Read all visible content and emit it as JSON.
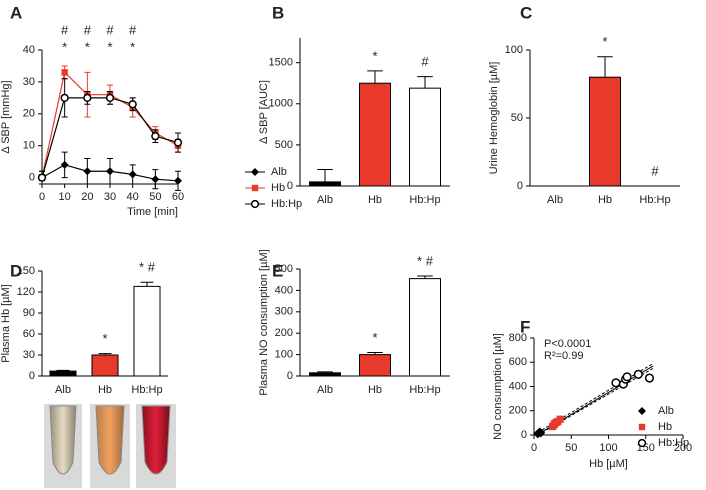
{
  "chart_data": [
    {
      "type": "line",
      "panel": "A",
      "ylabel": "Δ SBP [mmHg]",
      "xlabel": "Time [min]",
      "x": [
        0,
        10,
        20,
        30,
        40,
        50,
        60
      ],
      "xlim": [
        0,
        60
      ],
      "xticks": [
        0,
        10,
        20,
        30,
        40,
        50,
        60
      ],
      "ylim": [
        -2,
        40
      ],
      "yticks": [
        0,
        10,
        20,
        30,
        40
      ],
      "legend": "right",
      "series": [
        {
          "name": "Alb",
          "color": "#000000",
          "marker": "diamond",
          "values": [
            0,
            4,
            2,
            2,
            1,
            -0.5,
            -1
          ],
          "errors": [
            2,
            4,
            4,
            4,
            3,
            3,
            3
          ]
        },
        {
          "name": "Hb",
          "color": "#e8392b",
          "marker": "square",
          "values": [
            0,
            33,
            26,
            26,
            22,
            14,
            10
          ],
          "errors": [
            1,
            2,
            7,
            3,
            3,
            2,
            2
          ]
        },
        {
          "name": "Hb:Hp",
          "color": "#000000",
          "marker": "circle",
          "values": [
            0,
            25,
            25,
            25,
            23,
            13,
            11
          ],
          "errors": [
            2,
            6,
            2,
            2,
            2,
            2,
            3
          ]
        }
      ],
      "annotations_top": [
        null,
        "#",
        "#",
        "#",
        "#",
        null,
        null
      ],
      "annotations_bottom": [
        null,
        "*",
        "*",
        "*",
        "*",
        null,
        null
      ]
    },
    {
      "type": "bar",
      "panel": "B",
      "ylabel": "Δ SBP [AUC]",
      "categories": [
        "Alb",
        "Hb",
        "Hb:Hp"
      ],
      "values": [
        50,
        1250,
        1190
      ],
      "errors": [
        150,
        150,
        140
      ],
      "colors": [
        "#000000",
        "#e8392b",
        "#ffffff"
      ],
      "ylim": [
        0,
        1800
      ],
      "yticks": [
        0,
        500,
        1000,
        1500
      ],
      "annotations": [
        null,
        "*",
        "#"
      ]
    },
    {
      "type": "bar",
      "panel": "C",
      "ylabel": "Urine Hemoglobin [µM]",
      "categories": [
        "Alb",
        "Hb",
        "Hb:Hp"
      ],
      "values": [
        0,
        80,
        0
      ],
      "errors": [
        0,
        15,
        0
      ],
      "colors": [
        "#000000",
        "#e8392b",
        "#ffffff"
      ],
      "ylim": [
        0,
        100
      ],
      "yticks": [
        0,
        50,
        100
      ],
      "annotations": [
        null,
        "*",
        "#"
      ]
    },
    {
      "type": "bar",
      "panel": "D",
      "ylabel": "Plasma Hb [µM]",
      "categories": [
        "Alb",
        "Hb",
        "Hb:Hp"
      ],
      "values": [
        7,
        30,
        128
      ],
      "errors": [
        1,
        2,
        6
      ],
      "colors": [
        "#000000",
        "#e8392b",
        "#ffffff"
      ],
      "ylim": [
        0,
        150
      ],
      "yticks": [
        0,
        30,
        60,
        90,
        120,
        150
      ],
      "annotations": [
        null,
        "*",
        "* #"
      ]
    },
    {
      "type": "bar",
      "panel": "E",
      "ylabel": "Plasma NO consumption [µM]",
      "categories": [
        "Alb",
        "Hb",
        "Hb:Hp"
      ],
      "values": [
        15,
        100,
        455
      ],
      "errors": [
        4,
        10,
        12
      ],
      "colors": [
        "#000000",
        "#e8392b",
        "#ffffff"
      ],
      "ylim": [
        0,
        500
      ],
      "yticks": [
        0,
        100,
        200,
        300,
        400,
        500
      ],
      "annotations": [
        null,
        "*",
        "* #"
      ]
    },
    {
      "type": "scatter",
      "panel": "F",
      "ylabel": "NO consumption [µM]",
      "xlabel": "Hb [µM]",
      "xlim": [
        0,
        200
      ],
      "xticks": [
        0,
        50,
        100,
        150,
        200
      ],
      "ylim": [
        0,
        800
      ],
      "yticks": [
        0,
        200,
        400,
        600,
        800
      ],
      "legend": "right",
      "annotations": [
        "P<0.0001",
        "R²=0.99"
      ],
      "series": [
        {
          "name": "Alb",
          "color": "#000000",
          "marker": "diamond",
          "x": [
            5,
            6,
            7,
            8,
            9
          ],
          "values": [
            10,
            15,
            20,
            25,
            18
          ]
        },
        {
          "name": "Hb",
          "color": "#e8392b",
          "marker": "square",
          "x": [
            25,
            27,
            28,
            30,
            32,
            35
          ],
          "values": [
            70,
            85,
            95,
            105,
            110,
            130
          ]
        },
        {
          "name": "Hb:Hp",
          "color": "#000000",
          "marker": "circle",
          "x": [
            110,
            120,
            123,
            125,
            140,
            155
          ],
          "values": [
            430,
            420,
            460,
            480,
            500,
            470
          ]
        }
      ],
      "regression": {
        "x": [
          5,
          160
        ],
        "y": [
          5,
          570
        ],
        "upper": [
          20,
          590
        ],
        "lower": [
          0,
          550
        ]
      }
    }
  ]
}
